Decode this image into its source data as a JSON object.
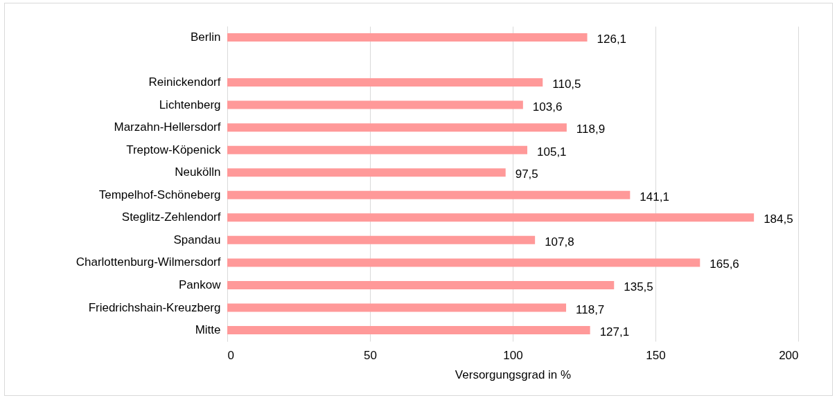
{
  "chart_data": {
    "type": "bar",
    "orientation": "horizontal",
    "xlabel": "Versorgungsgrad in %",
    "categories": [
      "Berlin",
      null,
      "Reinickendorf",
      "Lichtenberg",
      "Marzahn-Hellersdorf",
      "Treptow-Köpenick",
      "Neukölln",
      "Tempelhof-Schöneberg",
      "Steglitz-Zehlendorf",
      "Spandau",
      "Charlottenburg-Wilmersdorf",
      "Pankow",
      "Friedrichshain-Kreuzberg",
      "Mitte"
    ],
    "values": [
      126.1,
      null,
      110.5,
      103.6,
      118.9,
      105.1,
      97.5,
      141.1,
      184.5,
      107.8,
      165.6,
      135.5,
      118.7,
      127.1
    ],
    "value_labels": [
      "126,1",
      null,
      "110,5",
      "103,6",
      "118,9",
      "105,1",
      "97,5",
      "141,1",
      "184,5",
      "107,8",
      "165,6",
      "135,5",
      "118,7",
      "127,1"
    ],
    "color": "#ff9999",
    "xlim": [
      0,
      200
    ],
    "xticks": [
      0,
      50,
      100,
      150,
      200
    ],
    "grid": "x"
  }
}
